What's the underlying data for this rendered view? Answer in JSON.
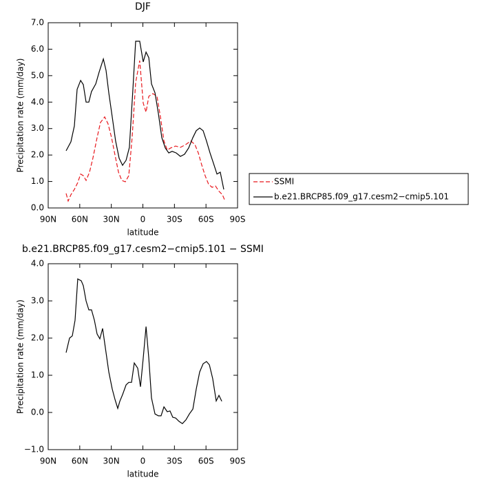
{
  "chart_data": [
    {
      "type": "line",
      "title": "DJF",
      "xlabel": "latitude",
      "ylabel": "Precipitation rate (mm/day)",
      "xlim": [
        90,
        -90
      ],
      "xticks": [
        {
          "value": 90,
          "label": "90N"
        },
        {
          "value": 60,
          "label": "60N"
        },
        {
          "value": 30,
          "label": "30N"
        },
        0,
        {
          "value": -30,
          "label": "30S"
        },
        {
          "value": -60,
          "label": "60S"
        },
        {
          "value": -90,
          "label": "90S"
        }
      ],
      "ylim": [
        0,
        7
      ],
      "yticks": [
        {
          "value": 0,
          "label": "0.0"
        },
        {
          "value": 1,
          "label": "1.0"
        },
        {
          "value": 2,
          "label": "2.0"
        },
        {
          "value": 3,
          "label": "3.0"
        },
        {
          "value": 4,
          "label": "4.0"
        },
        {
          "value": 5,
          "label": "5.0"
        },
        {
          "value": 6,
          "label": "6.0"
        },
        {
          "value": 7,
          "label": "7.0"
        }
      ],
      "legend": "outside-right",
      "series": [
        {
          "name": "SSMI",
          "color": "#e8161b",
          "style": "dashed",
          "x": [
            73,
            71,
            68.4,
            65.1,
            61.9,
            59.2,
            56.6,
            54,
            50.7,
            47.5,
            43.5,
            40.3,
            36.3,
            33.1,
            29.8,
            26.5,
            23.2,
            20,
            16.7,
            13.4,
            10.2,
            6.9,
            3,
            -0.3,
            -3,
            -5.6,
            -9.5,
            -13.4,
            -16.7,
            -20,
            -23.2,
            -26.5,
            -31.1,
            -35.7,
            -40.9,
            -45.5,
            -49.4,
            -52.7,
            -56,
            -59.2,
            -62.5,
            -65.8,
            -69,
            -72.3,
            -75.6,
            -77.6
          ],
          "values": [
            0.55,
            0.26,
            0.5,
            0.7,
            0.96,
            1.28,
            1.22,
            1.04,
            1.35,
            1.88,
            2.66,
            3.23,
            3.44,
            3.18,
            2.66,
            2.0,
            1.35,
            1.04,
            0.99,
            1.22,
            2.66,
            4.74,
            5.57,
            3.96,
            3.62,
            4.22,
            4.32,
            4.22,
            3.44,
            2.53,
            2.19,
            2.27,
            2.34,
            2.29,
            2.4,
            2.53,
            2.4,
            2.08,
            1.61,
            1.22,
            0.89,
            0.78,
            0.83,
            0.63,
            0.5,
            0.31
          ]
        },
        {
          "name": "b.e21.BRCP85.f09_g17.cesm2−cmip5.101",
          "color": "#000000",
          "style": "solid",
          "x": [
            73,
            68.4,
            65.1,
            62.5,
            59.2,
            56.6,
            54,
            51.4,
            48.8,
            44.8,
            41.6,
            37.6,
            35,
            32.4,
            29.1,
            25.9,
            22.6,
            19.3,
            16,
            12.8,
            9.5,
            6.9,
            3,
            -0.3,
            -3,
            -5.6,
            -8.2,
            -11.5,
            -14.7,
            -18,
            -21.3,
            -24.6,
            -27.8,
            -31.7,
            -35.7,
            -39.6,
            -43.5,
            -47.5,
            -50.7,
            -54,
            -57.3,
            -60.5,
            -63.8,
            -67.1,
            -70.4,
            -73.6,
            -76.9
          ],
          "values": [
            2.16,
            2.5,
            3.1,
            4.48,
            4.82,
            4.66,
            4.0,
            4.0,
            4.4,
            4.69,
            5.13,
            5.63,
            5.2,
            4.35,
            3.44,
            2.53,
            1.88,
            1.61,
            1.8,
            2.29,
            4.48,
            6.3,
            6.3,
            5.52,
            5.89,
            5.68,
            4.69,
            4.35,
            3.57,
            2.66,
            2.27,
            2.08,
            2.14,
            2.08,
            1.95,
            2.03,
            2.27,
            2.66,
            2.92,
            3.02,
            2.92,
            2.53,
            2.08,
            1.69,
            1.28,
            1.35,
            0.7
          ]
        }
      ]
    },
    {
      "type": "line",
      "title": "b.e21.BRCP85.f09_g17.cesm2−cmip5.101 − SSMI",
      "xlabel": "latitude",
      "ylabel": "Precipitation rate (mm/day)",
      "xlim": [
        90,
        -90
      ],
      "xticks": [
        {
          "value": 90,
          "label": "90N"
        },
        {
          "value": 60,
          "label": "60N"
        },
        {
          "value": 30,
          "label": "30N"
        },
        0,
        {
          "value": -30,
          "label": "30S"
        },
        {
          "value": -60,
          "label": "60S"
        },
        {
          "value": -90,
          "label": "90S"
        }
      ],
      "ylim": [
        -1,
        4
      ],
      "yticks": [
        {
          "value": -1,
          "label": "−1.0"
        },
        {
          "value": 0,
          "label": "0.0"
        },
        {
          "value": 1,
          "label": "1.0"
        },
        {
          "value": 2,
          "label": "2.0"
        },
        {
          "value": 3,
          "label": "3.0"
        },
        {
          "value": 4,
          "label": "4.0"
        }
      ],
      "series": [
        {
          "color": "#000000",
          "style": "solid",
          "x": [
            73,
            69.7,
            67.1,
            64.5,
            61.9,
            58.6,
            56.6,
            54,
            51.4,
            48.8,
            46.1,
            43.5,
            40.9,
            38.3,
            35.7,
            32.4,
            29.1,
            26.5,
            23.9,
            21.9,
            19.3,
            16,
            13.4,
            10.8,
            8.2,
            4.9,
            2.3,
            -0.3,
            -3,
            -5.6,
            -8.2,
            -11.5,
            -14.7,
            -17.3,
            -20,
            -23.2,
            -25.8,
            -28.4,
            -31.1,
            -34.4,
            -37.6,
            -40.9,
            -44.2,
            -47.5,
            -50.7,
            -54,
            -57.3,
            -60.5,
            -63.2,
            -66.4,
            -69.7,
            -72.3,
            -75
          ],
          "values": [
            1.61,
            2.0,
            2.06,
            2.48,
            3.59,
            3.54,
            3.41,
            3.0,
            2.76,
            2.76,
            2.48,
            2.11,
            1.98,
            2.26,
            1.74,
            1.09,
            0.63,
            0.35,
            0.11,
            0.3,
            0.48,
            0.74,
            0.81,
            0.81,
            1.33,
            1.19,
            0.69,
            1.46,
            2.31,
            1.46,
            0.39,
            -0.04,
            -0.09,
            -0.09,
            0.15,
            0.02,
            0.04,
            -0.13,
            -0.15,
            -0.24,
            -0.3,
            -0.2,
            -0.04,
            0.09,
            0.63,
            1.09,
            1.31,
            1.37,
            1.28,
            0.91,
            0.31,
            0.46,
            0.3
          ]
        }
      ]
    }
  ]
}
